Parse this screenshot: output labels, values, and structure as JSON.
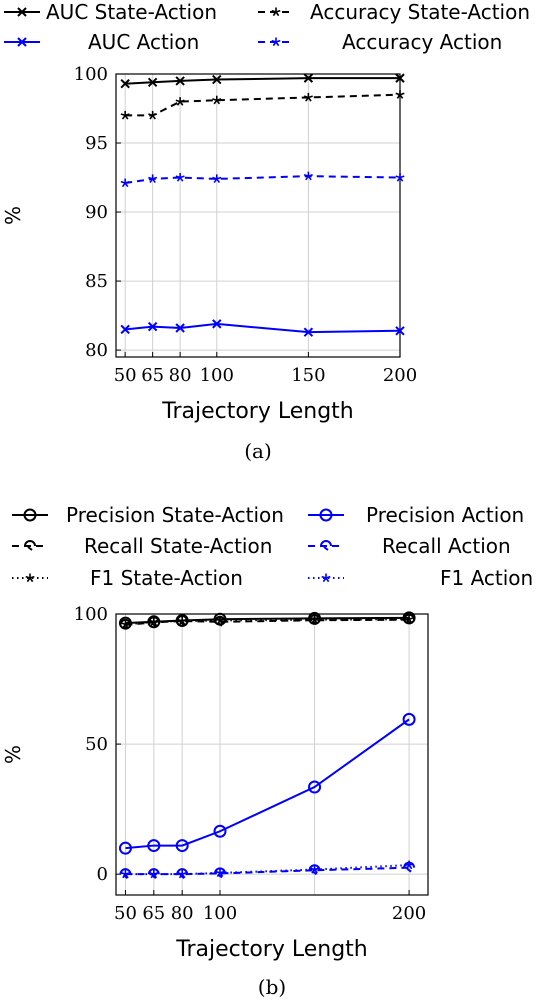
{
  "chart_data": [
    {
      "type": "line",
      "caption": "(a)",
      "xlabel": "Trajectory Length",
      "ylabel": "%",
      "x": [
        50,
        65,
        80,
        100,
        150,
        200
      ],
      "xticks": [
        "50",
        "65",
        "80",
        "100",
        "150",
        "200"
      ],
      "xlim": [
        45,
        200
      ],
      "ylim": [
        79.5,
        100
      ],
      "yticks": [
        80,
        85,
        90,
        95,
        100
      ],
      "grid": true,
      "legend_position": "top",
      "series": [
        {
          "name": "AUC State-Action",
          "color": "#000000",
          "dash": "solid",
          "marker": "x",
          "values": [
            99.3,
            99.4,
            99.5,
            99.6,
            99.7,
            99.7
          ]
        },
        {
          "name": "Accuracy State-Action",
          "color": "#000000",
          "dash": "dashed",
          "marker": "star",
          "values": [
            97.0,
            97.0,
            98.0,
            98.1,
            98.3,
            98.5
          ]
        },
        {
          "name": "AUC Action",
          "color": "#0000ff",
          "dash": "solid",
          "marker": "x",
          "values": [
            81.5,
            81.7,
            81.6,
            81.9,
            81.3,
            81.4
          ]
        },
        {
          "name": "Accuracy Action",
          "color": "#0000ff",
          "dash": "dashed",
          "marker": "star",
          "values": [
            92.1,
            92.4,
            92.5,
            92.4,
            92.6,
            92.5
          ]
        }
      ]
    },
    {
      "type": "line",
      "caption": "(b)",
      "xlabel": "Trajectory Length",
      "ylabel": "%",
      "x": [
        50,
        65,
        80,
        100,
        150,
        200
      ],
      "xticks": [
        "50",
        "65",
        "80",
        "100",
        "200"
      ],
      "xtick_values": [
        50,
        65,
        80,
        100,
        200
      ],
      "xlim": [
        45,
        210
      ],
      "ylim": [
        -8,
        100
      ],
      "yticks": [
        0,
        50,
        100
      ],
      "grid": true,
      "legend_position": "top",
      "series": [
        {
          "name": "Precision State-Action",
          "color": "#000000",
          "dash": "solid",
          "marker": "circle",
          "values": [
            96.5,
            97.0,
            97.5,
            98.0,
            98.3,
            98.5
          ]
        },
        {
          "name": "Precision Action",
          "color": "#0000ff",
          "dash": "solid",
          "marker": "circle",
          "values": [
            10,
            11,
            11,
            16.5,
            33.5,
            59.5
          ]
        },
        {
          "name": "Recall State-Action",
          "color": "#000000",
          "dash": "dashed",
          "marker": "halfcircle",
          "values": [
            95.8,
            96.8,
            97.3,
            97.0,
            97.6,
            97.8
          ]
        },
        {
          "name": "Recall Action",
          "color": "#0000ff",
          "dash": "dashed",
          "marker": "halfcircle",
          "values": [
            0,
            0,
            0,
            0.3,
            1.5,
            2.5
          ]
        },
        {
          "name": "F1 State-Action",
          "color": "#000000",
          "dash": "dotted",
          "marker": "star",
          "values": [
            96.0,
            97.0,
            97.3,
            97.5,
            97.8,
            98.0
          ]
        },
        {
          "name": "F1 Action",
          "color": "#0000ff",
          "dash": "dotted",
          "marker": "star",
          "values": [
            0,
            0,
            0,
            0.5,
            1.8,
            3.5
          ]
        }
      ]
    }
  ]
}
